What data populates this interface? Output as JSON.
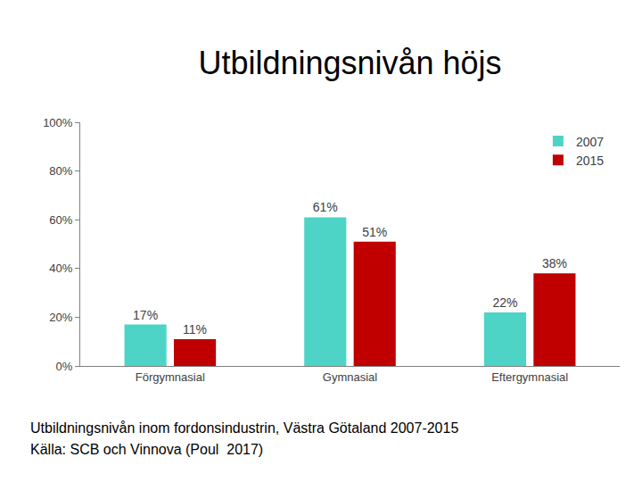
{
  "chart_data": {
    "type": "bar",
    "title": "Utbildningsnivån höjs",
    "categories": [
      "Förgymnasial",
      "Gymnasial",
      "Eftergymnasial"
    ],
    "series": [
      {
        "name": "2007",
        "color": "#4dd4c6",
        "values": [
          17,
          61,
          22
        ],
        "value_labels": [
          "17%",
          "61%",
          "22%"
        ]
      },
      {
        "name": "2015",
        "color": "#c00000",
        "values": [
          11,
          51,
          38
        ],
        "value_labels": [
          "11%",
          "51%",
          "38%"
        ]
      }
    ],
    "ylim": [
      0,
      100
    ],
    "yticks": [
      {
        "value": 0,
        "label": "0%"
      },
      {
        "value": 20,
        "label": "20%"
      },
      {
        "value": 40,
        "label": "40%"
      },
      {
        "value": 60,
        "label": "60%"
      },
      {
        "value": 80,
        "label": "80%"
      },
      {
        "value": 100,
        "label": "100%"
      }
    ],
    "grid": false,
    "legend": "upper right",
    "data_labels": true,
    "annotations": [
      "Utbildningsnivån inom fordonsindustrin, Västra Götaland 2007-2015",
      "Källa: SCB och Vinnova (Poul  2017)"
    ]
  }
}
